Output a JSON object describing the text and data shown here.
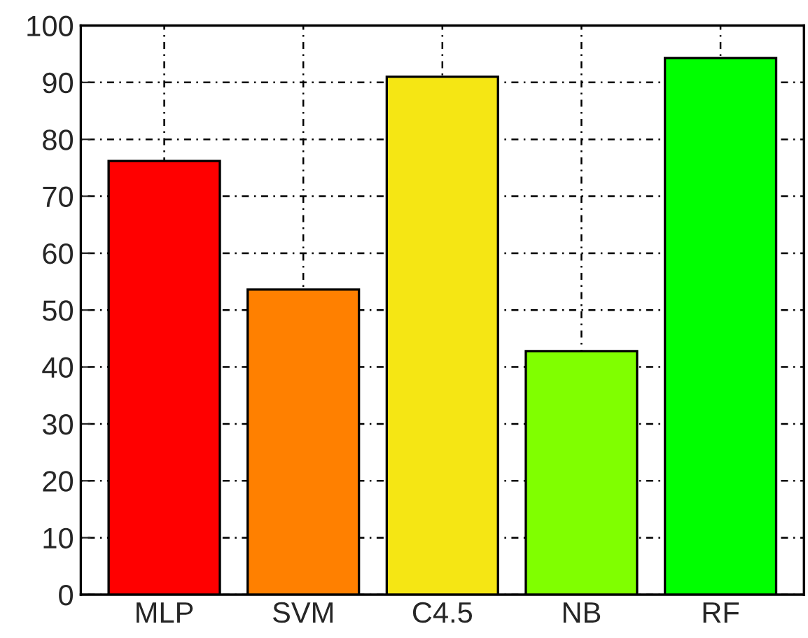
{
  "chart_data": {
    "type": "bar",
    "categories": [
      "MLP",
      "SVM",
      "C4.5",
      "NB",
      "RF"
    ],
    "values": [
      76.2,
      53.6,
      91,
      42.8,
      94.3
    ],
    "colors": [
      "#ff0000",
      "#ff8000",
      "#f5e614",
      "#80ff00",
      "#00ff00"
    ],
    "ylim": [
      0,
      100
    ],
    "yticks": [
      0,
      10,
      20,
      30,
      40,
      50,
      60,
      70,
      80,
      90,
      100
    ],
    "grid": true
  }
}
